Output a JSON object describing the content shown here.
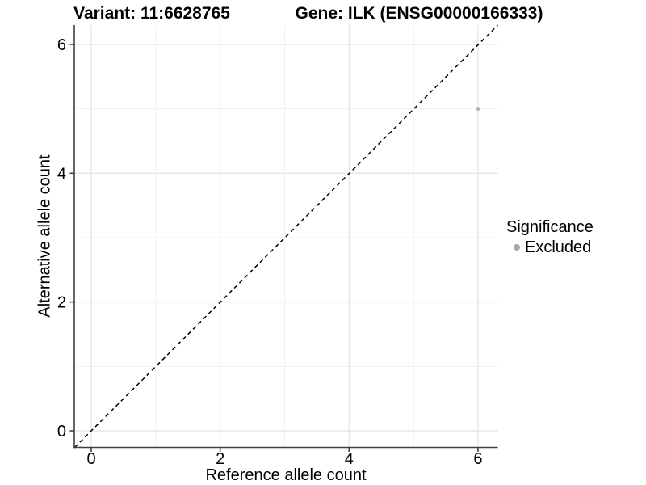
{
  "figure": {
    "title_left": "Variant: 11:6628765",
    "title_right": "Gene: ILK (ENSG00000166333)"
  },
  "chart_data": {
    "type": "scatter",
    "xlabel": "Reference allele count",
    "ylabel": "Alternative allele count",
    "xlim": [
      -0.3,
      6.3
    ],
    "ylim": [
      -0.3,
      6.3
    ],
    "x_major_ticks": [
      0,
      2,
      4,
      6
    ],
    "y_major_ticks": [
      0,
      2,
      4,
      6
    ],
    "x_minor_gridlines": [
      1,
      3,
      5
    ],
    "y_minor_gridlines": [
      1,
      3,
      5
    ],
    "grid": "on",
    "points": [
      {
        "x": 6,
        "y": 5,
        "series": "Excluded"
      }
    ],
    "reference_line": {
      "slope": 1,
      "intercept": 0,
      "style": "dashed",
      "color": "#000000"
    },
    "legend": {
      "title": "Significance",
      "position": "right",
      "entries": [
        {
          "label": "Excluded",
          "color": "#a8a8a8",
          "shape": "circle"
        }
      ]
    },
    "colors": {
      "grid_major": "#e6e6e6",
      "grid_minor": "#f1f1f1",
      "axis": "#404040",
      "point": "#b3b3b3",
      "text": "#000000"
    }
  }
}
